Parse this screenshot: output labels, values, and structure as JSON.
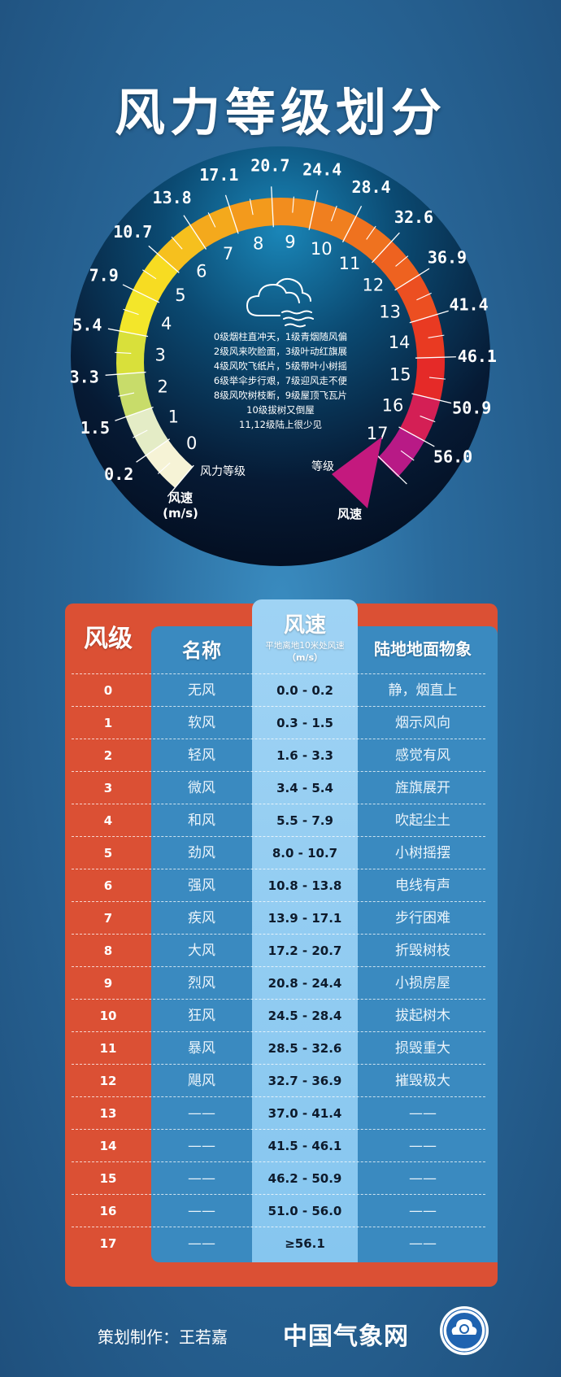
{
  "title": "风力等级划分",
  "gauge": {
    "speed_ticks": [
      "0.2",
      "1.5",
      "3.3",
      "5.4",
      "7.9",
      "10.7",
      "13.8",
      "17.1",
      "20.7",
      "24.4",
      "28.4",
      "32.6",
      "36.9",
      "41.4",
      "46.1",
      "50.9",
      "56.0"
    ],
    "levels": [
      "0",
      "1",
      "2",
      "3",
      "4",
      "5",
      "6",
      "7",
      "8",
      "9",
      "10",
      "11",
      "12",
      "13",
      "14",
      "15",
      "16",
      "17"
    ],
    "label_level_left": "风力等级",
    "label_level_right": "等级",
    "label_speed_left": "风速",
    "label_speed_left_unit": "(m/s)",
    "label_speed_right": "风速",
    "icon": "cloud-wind-icon",
    "description_lines": [
      "0级烟柱直冲天，1级青烟随风偏",
      "2级风来吹脸面，3级叶动红旗展",
      "4级风吹飞纸片，5级带叶小树摇",
      "6级举伞步行艰，7级迎风走不便",
      "8级风吹树枝断，9级屋顶飞瓦片",
      "10级拔树又倒屋",
      "11,12级陆上很少见"
    ],
    "arc_colors": [
      "#f6f3d6",
      "#e4ecc6",
      "#c8dc6a",
      "#d9e03a",
      "#f3e62a",
      "#f7dc22",
      "#f6c01e",
      "#f4a91c",
      "#f39a1c",
      "#f28d1e",
      "#f07f1f",
      "#ef721f",
      "#ee6220",
      "#ec4f21",
      "#e93a22",
      "#e52a28",
      "#d41f55",
      "#b81a86"
    ]
  },
  "table": {
    "headers": {
      "level": "风级",
      "name": "名称",
      "speed": "风速",
      "speed_sub": "平地离地10米处风速",
      "speed_unit": "（m/s）",
      "observation": "陆地地面物象"
    },
    "rows": [
      {
        "level": "0",
        "name": "无风",
        "speed": "0.0 - 0.2",
        "observation": "静，烟直上"
      },
      {
        "level": "1",
        "name": "软风",
        "speed": "0.3 - 1.5",
        "observation": "烟示风向"
      },
      {
        "level": "2",
        "name": "轻风",
        "speed": "1.6 - 3.3",
        "observation": "感觉有风"
      },
      {
        "level": "3",
        "name": "微风",
        "speed": "3.4 - 5.4",
        "observation": "旌旗展开"
      },
      {
        "level": "4",
        "name": "和风",
        "speed": "5.5 - 7.9",
        "observation": "吹起尘土"
      },
      {
        "level": "5",
        "name": "劲风",
        "speed": "8.0 - 10.7",
        "observation": "小树摇摆"
      },
      {
        "level": "6",
        "name": "强风",
        "speed": "10.8 - 13.8",
        "observation": "电线有声"
      },
      {
        "level": "7",
        "name": "疾风",
        "speed": "13.9 - 17.1",
        "observation": "步行困难"
      },
      {
        "level": "8",
        "name": "大风",
        "speed": "17.2 - 20.7",
        "observation": "折毁树枝"
      },
      {
        "level": "9",
        "name": "烈风",
        "speed": "20.8 - 24.4",
        "observation": "小损房屋"
      },
      {
        "level": "10",
        "name": "狂风",
        "speed": "24.5 - 28.4",
        "observation": "拔起树木"
      },
      {
        "level": "11",
        "name": "暴风",
        "speed": "28.5 - 32.6",
        "observation": "损毁重大"
      },
      {
        "level": "12",
        "name": "飓风",
        "speed": "32.7 - 36.9",
        "observation": "摧毁极大"
      },
      {
        "level": "13",
        "name": "——",
        "speed": "37.0 - 41.4",
        "observation": "——"
      },
      {
        "level": "14",
        "name": "——",
        "speed": "41.5 - 46.1",
        "observation": "——"
      },
      {
        "level": "15",
        "name": "——",
        "speed": "46.2 - 50.9",
        "observation": "——"
      },
      {
        "level": "16",
        "name": "——",
        "speed": "51.0 - 56.0",
        "observation": "——"
      },
      {
        "level": "17",
        "name": "——",
        "speed": "≥56.1",
        "observation": "——"
      }
    ]
  },
  "footer": {
    "credit": "策划制作：王若嘉",
    "brand": "中国气象网",
    "logo": "cma-logo-icon"
  },
  "colors": {
    "background": "#2a6a9c",
    "table_red": "#db5034",
    "table_blue": "#3a8ac0",
    "speed_column": "#8fcbf0",
    "gauge_face": "#06182e"
  }
}
